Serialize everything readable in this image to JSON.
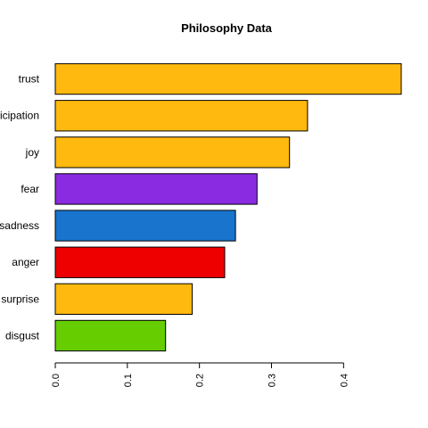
{
  "chart_data": {
    "type": "bar",
    "orientation": "horizontal",
    "title": "Philosophy Data",
    "xlabel": "",
    "ylabel": "",
    "categories": [
      "trust",
      "anticipation",
      "joy",
      "fear",
      "sadness",
      "anger",
      "surprise",
      "disgust"
    ],
    "values": [
      0.48,
      0.35,
      0.325,
      0.28,
      0.25,
      0.235,
      0.19,
      0.153
    ],
    "colors": [
      "#FFB90F",
      "#FFB90F",
      "#FFB90F",
      "#8A2BE2",
      "#1874CD",
      "#EE0000",
      "#FFB90F",
      "#66CD00"
    ],
    "xlim": [
      0,
      0.48
    ],
    "xticks": [
      0.0,
      0.1,
      0.2,
      0.3,
      0.4
    ],
    "xtick_labels": [
      "0.0",
      "0.1",
      "0.2",
      "0.3",
      "0.4"
    ],
    "grid": false,
    "legend": "none"
  }
}
